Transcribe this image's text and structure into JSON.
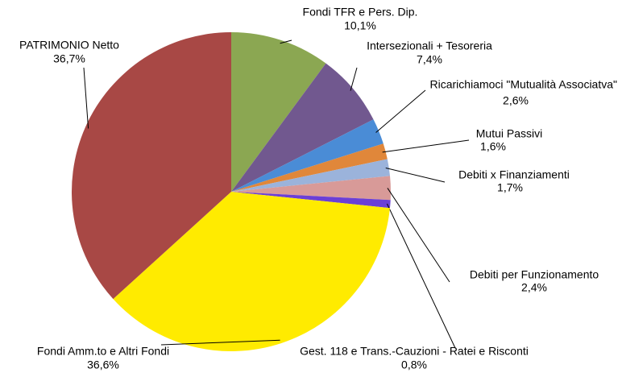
{
  "chart_data": {
    "type": "pie",
    "categories": [
      "Fondi TFR e Pers. Dip.",
      "Intersezionali + Tesoreria",
      "Ricarichiamoci \"Mutualità Associatva\"",
      "Mutui Passivi",
      "Debiti x Finanziamenti",
      "Debiti per Funzionamento",
      "Gest. 118 e Trans.-Cauzioni - Ratei e Risconti",
      "Fondi Amm.to e Altri Fondi",
      "PATRIMONIO Netto"
    ],
    "values": [
      10.1,
      7.4,
      2.6,
      1.6,
      1.7,
      2.4,
      0.8,
      36.6,
      36.7
    ],
    "value_labels": [
      "10,1%",
      "7,4%",
      "2,6%",
      "1,6%",
      "1,7%",
      "2,4%",
      "0,8%",
      "36,6%",
      "36,7%"
    ],
    "colors": [
      "#8ba752",
      "#71588f",
      "#4a8cd6",
      "#e0873a",
      "#9bb3db",
      "#d89a98",
      "#6b3fd6",
      "#ffeb00",
      "#a84845"
    ]
  }
}
